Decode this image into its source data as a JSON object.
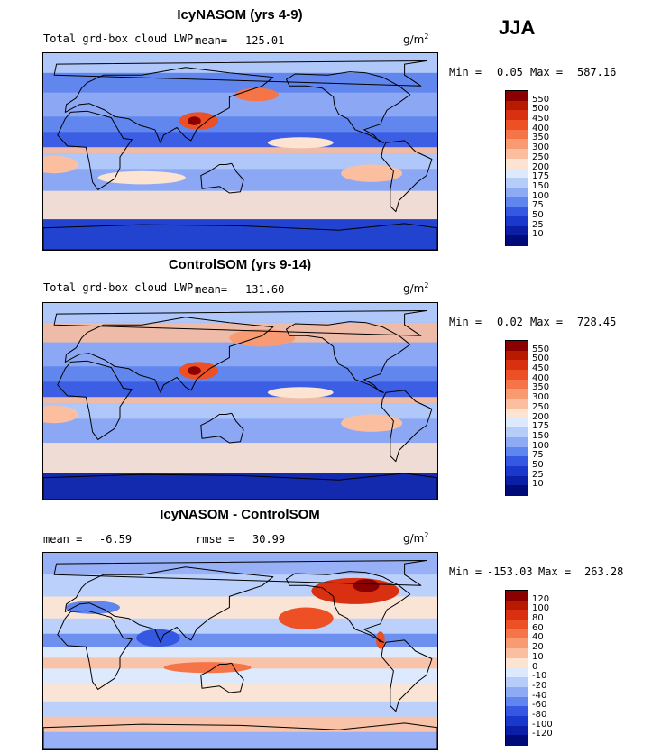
{
  "season": "JJA",
  "units_base": "g/m",
  "units_exp": "2",
  "chart_data": [
    {
      "type": "heatmap",
      "title": "IcyNASOM (yrs 4-9)",
      "variable": "Total grd-box cloud LWP",
      "mean_label": "mean=",
      "mean_value": "125.01",
      "min_label": "Min =",
      "min_value": "0.05",
      "max_label": "Max =",
      "max_value": "587.16",
      "levels": [
        "550",
        "500",
        "450",
        "400",
        "350",
        "300",
        "250",
        "200",
        "175",
        "150",
        "100",
        "75",
        "50",
        "25",
        "10"
      ],
      "colors": [
        "#8b0000",
        "#b81a00",
        "#d83010",
        "#ec5024",
        "#f57448",
        "#f89a72",
        "#fbbfa0",
        "#fde3d1",
        "#ddeafe",
        "#b7cdf9",
        "#8faaf5",
        "#5f85ee",
        "#3558e2",
        "#1a38cc",
        "#0a1ea6",
        "#000b7a"
      ]
    },
    {
      "type": "heatmap",
      "title": "ControlSOM (yrs 9-14)",
      "variable": "Total grd-box cloud LWP",
      "mean_label": "mean=",
      "mean_value": "131.60",
      "min_label": "Min =",
      "min_value": "0.02",
      "max_label": "Max =",
      "max_value": "728.45",
      "levels": [
        "550",
        "500",
        "450",
        "400",
        "350",
        "300",
        "250",
        "200",
        "175",
        "150",
        "100",
        "75",
        "50",
        "25",
        "10"
      ],
      "colors": [
        "#8b0000",
        "#b81a00",
        "#d83010",
        "#ec5024",
        "#f57448",
        "#f89a72",
        "#fbbfa0",
        "#fde3d1",
        "#ddeafe",
        "#b7cdf9",
        "#8faaf5",
        "#5f85ee",
        "#3558e2",
        "#1a38cc",
        "#0a1ea6",
        "#000b7a"
      ]
    },
    {
      "type": "heatmap",
      "title": "IcyNASOM - ControlSOM",
      "mean_label": "mean =",
      "mean_value": "-6.59",
      "rmse_label": "rmse =",
      "rmse_value": "30.99",
      "min_label": "Min =",
      "min_value": "-153.03",
      "max_label": "Max =",
      "max_value": "263.28",
      "levels": [
        "120",
        "100",
        "80",
        "60",
        "40",
        "20",
        "10",
        "0",
        "-10",
        "-20",
        "-40",
        "-60",
        "-80",
        "-100",
        "-120"
      ],
      "colors": [
        "#8b0000",
        "#b81a00",
        "#d83010",
        "#ec5024",
        "#f57448",
        "#f89a72",
        "#fbbfa0",
        "#fde3d1",
        "#ddeafe",
        "#b7cdf9",
        "#8faaf5",
        "#5f85ee",
        "#3558e2",
        "#1a38cc",
        "#0a1ea6",
        "#000b7a"
      ]
    }
  ]
}
